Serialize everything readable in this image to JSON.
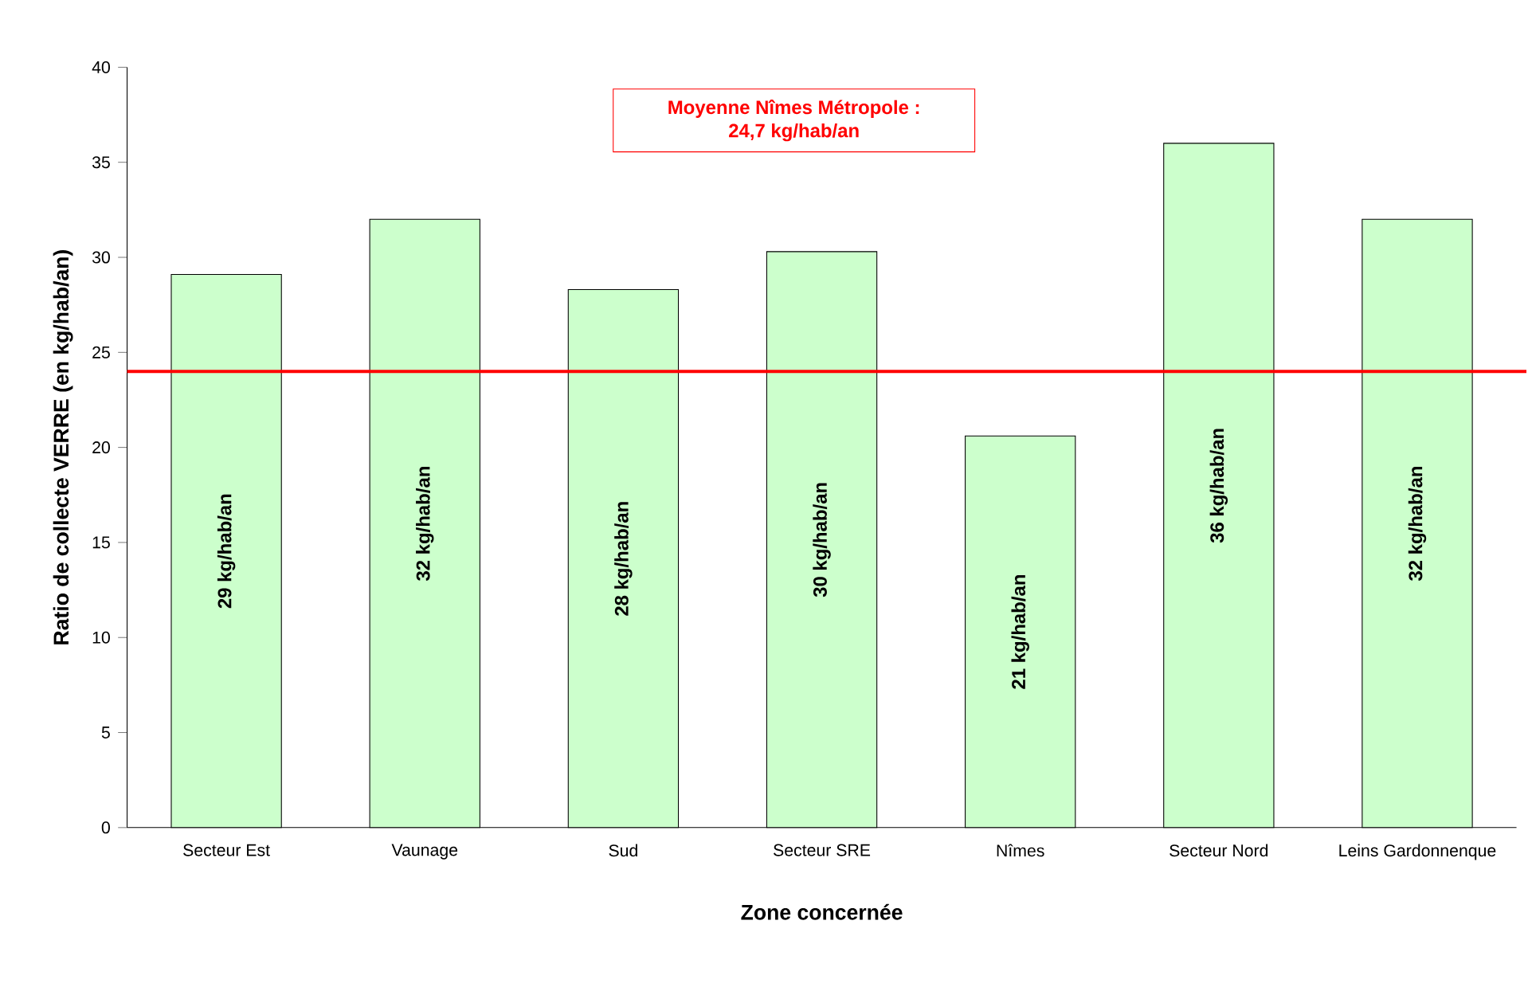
{
  "chart_data": {
    "type": "bar",
    "xlabel": "Zone concernée",
    "ylabel": "Ratio de collecte VERRE (en kg/hab/an)",
    "categories": [
      "Secteur Est",
      "Vaunage",
      "Sud",
      "Secteur SRE",
      "Nîmes",
      "Secteur Nord",
      "Leins Gardonnenque"
    ],
    "values": [
      29.1,
      32,
      28.3,
      30.3,
      20.6,
      36,
      32
    ],
    "value_labels": [
      "29 kg/hab/an",
      "32 kg/hab/an",
      "28 kg/hab/an",
      "30 kg/hab/an",
      "21 kg/hab/an",
      "36 kg/hab/an",
      "32 kg/hab/an"
    ],
    "color": "#ccffcc",
    "ylim": [
      0,
      40
    ],
    "yticks": [
      0,
      5,
      10,
      15,
      20,
      25,
      30,
      35,
      40
    ],
    "annotations": [
      "Moyenne Nîmes Métropole :",
      "24,7 kg/hab/an"
    ],
    "ref_lines": [
      {
        "axis": "y",
        "value": 24,
        "color": "#ff0000"
      }
    ]
  }
}
